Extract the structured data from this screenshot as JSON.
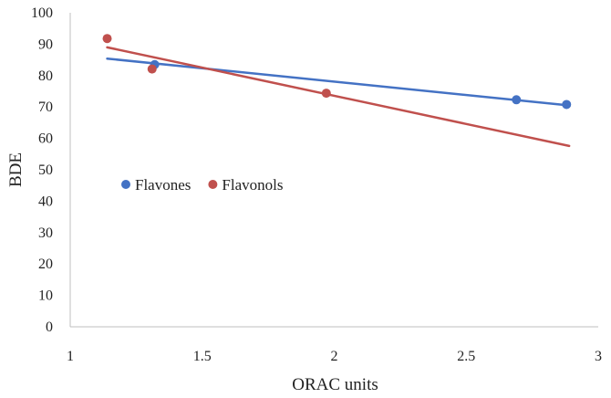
{
  "chart_data": {
    "type": "scatter",
    "title": "",
    "xlabel": "ORAC units",
    "ylabel": "BDE",
    "xlim": [
      1,
      3
    ],
    "ylim": [
      0,
      100
    ],
    "x_ticks": [
      1,
      1.5,
      2,
      2.5,
      3
    ],
    "x_tick_labels": [
      "1",
      "1.5",
      "2",
      "2.5",
      "3"
    ],
    "y_ticks": [
      0,
      10,
      20,
      30,
      40,
      50,
      60,
      70,
      80,
      90,
      100
    ],
    "y_tick_labels": [
      "0",
      "10",
      "20",
      "30",
      "40",
      "50",
      "60",
      "70",
      "80",
      "90",
      "100"
    ],
    "grid": false,
    "legend_position": "left-middle",
    "series": [
      {
        "name": "Flavones",
        "color": "#4472C4",
        "points": [
          {
            "x": 1.32,
            "y": 83.5
          },
          {
            "x": 2.69,
            "y": 72.3
          },
          {
            "x": 2.88,
            "y": 70.8
          }
        ],
        "trendline": {
          "x": [
            1.14,
            2.89
          ],
          "y": [
            85.4,
            70.5
          ]
        }
      },
      {
        "name": "Flavonols",
        "color": "#C0504D",
        "points": [
          {
            "x": 1.14,
            "y": 91.8
          },
          {
            "x": 1.31,
            "y": 82.1
          },
          {
            "x": 1.97,
            "y": 74.4
          }
        ],
        "trendline": {
          "x": [
            1.14,
            2.89
          ],
          "y": [
            89.0,
            57.6
          ]
        }
      }
    ]
  }
}
